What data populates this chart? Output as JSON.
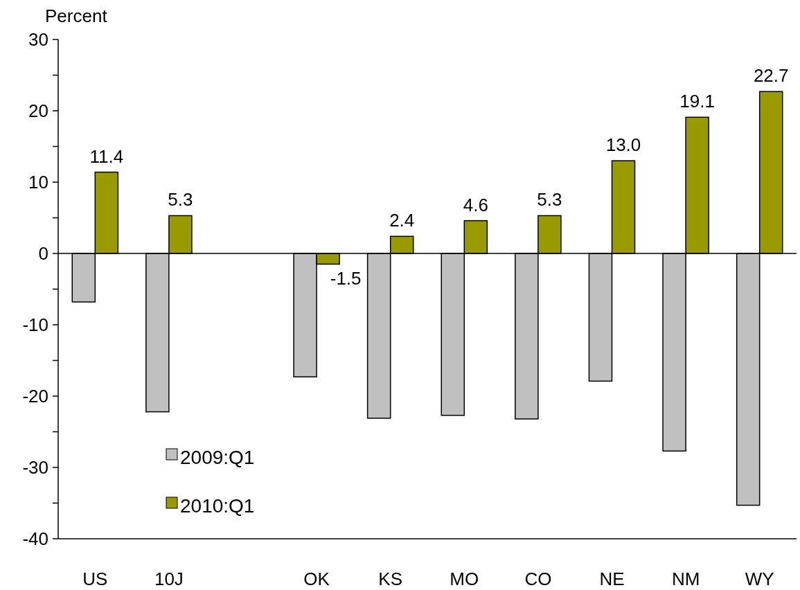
{
  "chart_data": {
    "type": "bar",
    "ylabel": "Percent",
    "categories": [
      "US",
      "10J",
      null,
      "OK",
      "KS",
      "MO",
      "CO",
      "NE",
      "NM",
      "WY"
    ],
    "series": [
      {
        "name": "2009:Q1",
        "color": "#c0c0c0",
        "values": [
          -6.8,
          -22.2,
          null,
          -17.3,
          -23.1,
          -22.7,
          -23.2,
          -17.9,
          -27.7,
          -35.3
        ]
      },
      {
        "name": "2010:Q1",
        "color": "#999900",
        "values": [
          11.4,
          5.3,
          null,
          -1.5,
          2.4,
          4.6,
          5.3,
          13.0,
          19.1,
          22.7
        ],
        "value_labels": [
          "11.4",
          "5.3",
          null,
          "-1.5",
          "2.4",
          "4.6",
          "5.3",
          "13.0",
          "19.1",
          "22.7"
        ]
      }
    ],
    "ylim": [
      -40,
      30
    ],
    "yticks": [
      -40,
      {
        "value": -35,
        "label": null
      },
      -30,
      {
        "value": -25,
        "label": null
      },
      -20,
      {
        "value": -15,
        "label": null
      },
      -10,
      {
        "value": -5,
        "label": null
      },
      0,
      {
        "value": 5,
        "label": null
      },
      10,
      {
        "value": 15,
        "label": null
      },
      20,
      {
        "value": 25,
        "label": null
      },
      30
    ],
    "legend": "bottom left"
  }
}
